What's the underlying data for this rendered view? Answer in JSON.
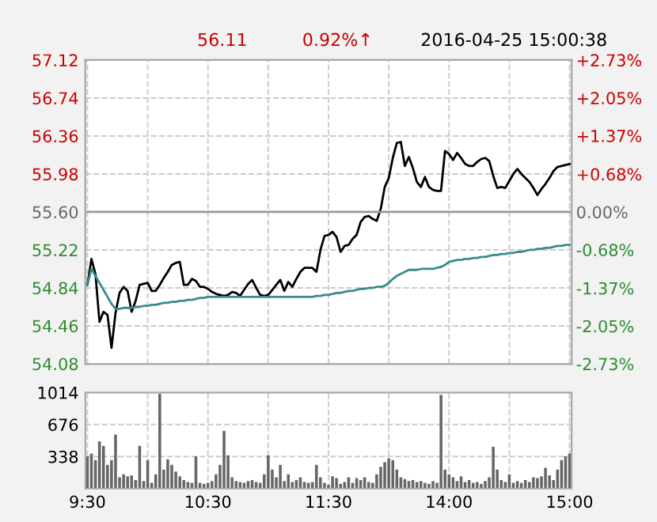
{
  "chart_data": [
    {
      "type": "line",
      "annotations": [
        "56.11",
        "0.92%↑",
        "2016-04-25 15:00:38"
      ],
      "grid": true,
      "categories": [
        null,
        null,
        null,
        null,
        null,
        null,
        null,
        null,
        null,
        null,
        null,
        null,
        null,
        null,
        null,
        null,
        null,
        null,
        null,
        null,
        null,
        null,
        null,
        null,
        null,
        null,
        null,
        null,
        null,
        null,
        null,
        null,
        null,
        null,
        null,
        null,
        null,
        null,
        null,
        null,
        null,
        null,
        null,
        null,
        null,
        null,
        null,
        null,
        null,
        null,
        null,
        null,
        null,
        null,
        null,
        null,
        null,
        null,
        null,
        null,
        null,
        null,
        null,
        null,
        null,
        null,
        null,
        null,
        null,
        null,
        null,
        null,
        null,
        null,
        null,
        null,
        null,
        null,
        null,
        null,
        null,
        null,
        null,
        null,
        null,
        null,
        null,
        null,
        null,
        null,
        null,
        null,
        null,
        null,
        null,
        null,
        null,
        null,
        null,
        null,
        null,
        null,
        null,
        null,
        null,
        null,
        null,
        null,
        null,
        null,
        null,
        null,
        null,
        null,
        null,
        null,
        null,
        null,
        null,
        null,
        null
      ],
      "ylim": [
        54.08,
        57.12
      ],
      "yticks": [
        54.08,
        54.46,
        54.84,
        55.22,
        {
          "value": 55.6,
          "label": "55.60"
        },
        55.98,
        56.36,
        56.74,
        57.12
      ],
      "y2lim": [
        -2.73,
        2.73
      ],
      "y2ticks": [
        {
          "value": -2.73,
          "label": "-2.73%"
        },
        {
          "value": -2.05,
          "label": "-2.05%"
        },
        {
          "value": -1.37,
          "label": "-1.37%"
        },
        {
          "value": -0.68,
          "label": "-0.68%"
        },
        {
          "value": 0,
          "label": "0.00%"
        },
        {
          "value": 0.68,
          "label": "+0.68%"
        },
        {
          "value": 1.37,
          "label": "+1.37%"
        },
        {
          "value": 2.05,
          "label": "+2.05%"
        },
        {
          "value": 2.73,
          "label": "+2.73%"
        }
      ],
      "ref_lines": [
        {
          "axis": "y",
          "value": 55.6,
          "color": "#999999",
          "line_style": "solid"
        }
      ],
      "series": [
        {
          "color": "#000000",
          "values": [
            54.87,
            55.13,
            54.98,
            54.5,
            54.6,
            54.57,
            54.24,
            54.59,
            54.79,
            54.85,
            54.81,
            54.6,
            54.71,
            54.87,
            54.88,
            54.89,
            54.81,
            54.81,
            54.87,
            54.94,
            55.0,
            55.07,
            55.09,
            55.1,
            54.87,
            54.87,
            54.93,
            54.91,
            54.85,
            54.85,
            54.83,
            54.8,
            54.78,
            54.77,
            54.76,
            54.77,
            54.8,
            54.79,
            54.76,
            54.82,
            54.88,
            54.92,
            54.84,
            54.77,
            54.76,
            54.77,
            54.82,
            54.87,
            54.92,
            54.81,
            54.9,
            54.85,
            54.93,
            55.0,
            55.04,
            55.04,
            55.04,
            55.0,
            55.22,
            55.36,
            55.37,
            55.4,
            55.35,
            55.2,
            55.26,
            55.27,
            55.33,
            55.37,
            55.5,
            55.55,
            55.56,
            55.53,
            55.51,
            55.63,
            55.85,
            55.94,
            56.14,
            56.29,
            56.3,
            56.06,
            56.15,
            56.04,
            55.9,
            55.85,
            55.95,
            55.85,
            55.82,
            55.81,
            55.81,
            56.21,
            56.18,
            56.12,
            56.19,
            56.14,
            56.08,
            56.06,
            56.06,
            56.1,
            56.13,
            56.14,
            56.11,
            55.96,
            55.84,
            55.85,
            55.84,
            55.91,
            55.98,
            56.03,
            55.98,
            55.94,
            55.9,
            55.84,
            55.77,
            55.83,
            55.88,
            55.94,
            56.01,
            56.05,
            56.06,
            56.07,
            56.08
          ]
        },
        {
          "color": "#3a8a8a",
          "values": [
            54.87,
            55.03,
            54.96,
            54.89,
            54.82,
            54.75,
            54.68,
            54.63,
            54.63,
            54.64,
            54.64,
            54.64,
            54.65,
            54.65,
            54.66,
            54.66,
            54.67,
            54.67,
            54.68,
            54.69,
            54.69,
            54.7,
            54.7,
            54.71,
            54.71,
            54.72,
            54.72,
            54.73,
            54.74,
            54.74,
            54.75,
            54.75,
            54.75,
            54.75,
            54.75,
            54.75,
            54.75,
            54.75,
            54.75,
            54.75,
            54.75,
            54.75,
            54.75,
            54.75,
            54.75,
            54.75,
            54.75,
            54.75,
            54.75,
            54.75,
            54.75,
            54.75,
            54.75,
            54.75,
            54.75,
            54.75,
            54.75,
            54.76,
            54.76,
            54.77,
            54.77,
            54.78,
            54.79,
            54.79,
            54.8,
            54.81,
            54.81,
            54.82,
            54.83,
            54.83,
            54.84,
            54.84,
            54.85,
            54.85,
            54.86,
            54.89,
            54.93,
            54.96,
            54.98,
            55.0,
            55.02,
            55.02,
            55.02,
            55.03,
            55.03,
            55.03,
            55.03,
            55.04,
            55.05,
            55.07,
            55.1,
            55.11,
            55.12,
            55.12,
            55.13,
            55.13,
            55.14,
            55.14,
            55.15,
            55.15,
            55.16,
            55.17,
            55.17,
            55.18,
            55.18,
            55.19,
            55.19,
            55.2,
            55.2,
            55.21,
            55.22,
            55.22,
            55.23,
            55.23,
            55.24,
            55.24,
            55.25,
            55.26,
            55.26,
            55.27,
            55.27
          ]
        }
      ]
    },
    {
      "type": "bar",
      "grid": true,
      "categories": [
        "9:30",
        null,
        null,
        null,
        null,
        null,
        null,
        null,
        null,
        null,
        null,
        null,
        null,
        null,
        null,
        null,
        null,
        null,
        null,
        null,
        null,
        null,
        null,
        null,
        null,
        null,
        null,
        null,
        null,
        null,
        "10:30",
        null,
        null,
        null,
        null,
        null,
        null,
        null,
        null,
        null,
        null,
        null,
        null,
        null,
        null,
        null,
        null,
        null,
        null,
        null,
        null,
        null,
        null,
        null,
        null,
        null,
        null,
        null,
        null,
        null,
        "11:30",
        null,
        null,
        null,
        null,
        null,
        null,
        null,
        null,
        null,
        null,
        null,
        null,
        null,
        null,
        null,
        null,
        null,
        null,
        null,
        null,
        null,
        null,
        null,
        null,
        null,
        null,
        null,
        null,
        null,
        "14:00",
        null,
        null,
        null,
        null,
        null,
        null,
        null,
        null,
        null,
        null,
        null,
        null,
        null,
        null,
        null,
        null,
        null,
        null,
        null,
        null,
        null,
        null,
        null,
        null,
        null,
        null,
        null,
        null,
        null,
        "15:00"
      ],
      "ylim": [
        0,
        1014
      ],
      "yticks": [
        338,
        676,
        1014
      ],
      "series": [
        {
          "color": "#666666",
          "values": [
            340,
            370,
            300,
            500,
            450,
            250,
            300,
            570,
            120,
            150,
            130,
            140,
            90,
            450,
            80,
            300,
            60,
            150,
            1000,
            200,
            310,
            250,
            180,
            130,
            90,
            70,
            60,
            340,
            60,
            50,
            60,
            80,
            150,
            250,
            610,
            350,
            120,
            80,
            70,
            60,
            80,
            90,
            70,
            60,
            150,
            350,
            200,
            120,
            250,
            80,
            150,
            70,
            90,
            120,
            70,
            60,
            70,
            250,
            120,
            60,
            40,
            130,
            110,
            50,
            70,
            120,
            60,
            110,
            90,
            120,
            70,
            60,
            150,
            230,
            280,
            320,
            300,
            200,
            120,
            100,
            80,
            90,
            70,
            80,
            60,
            50,
            80,
            60,
            990,
            200,
            150,
            120,
            80,
            130,
            70,
            90,
            60,
            70,
            50,
            80,
            120,
            440,
            200,
            90,
            70,
            150,
            60,
            80,
            60,
            90,
            70,
            120,
            110,
            130,
            220,
            140,
            90,
            200,
            300,
            340,
            370
          ]
        }
      ]
    }
  ]
}
